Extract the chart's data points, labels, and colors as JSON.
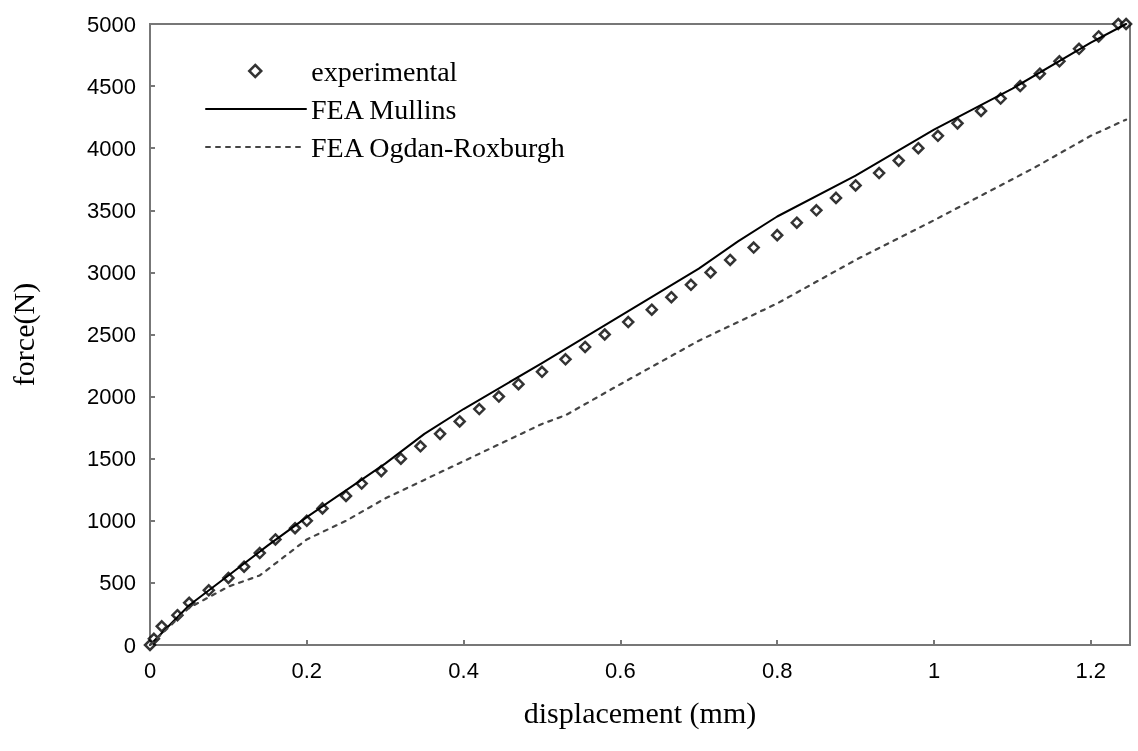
{
  "chart_data": {
    "type": "line",
    "xlabel": "displacement (mm)",
    "ylabel": "force(N)",
    "xlim": [
      0,
      1.25
    ],
    "xticks": [
      0,
      0.2,
      0.4,
      0.6,
      0.8,
      1,
      1.2
    ],
    "ylim": [
      0,
      5000
    ],
    "yticks": [
      0,
      500,
      1000,
      1500,
      2000,
      2500,
      3000,
      3500,
      4000,
      4500,
      5000
    ],
    "grid": false,
    "legend": "top left",
    "series": [
      {
        "name": "experimental",
        "type": "scatter",
        "marker": "diamond",
        "color": "#000000",
        "x": [
          0,
          0.005,
          0.015,
          0.035,
          0.05,
          0.075,
          0.1,
          0.12,
          0.14,
          0.16,
          0.185,
          0.2,
          0.22,
          0.25,
          0.27,
          0.295,
          0.32,
          0.345,
          0.37,
          0.395,
          0.42,
          0.445,
          0.47,
          0.5,
          0.53,
          0.555,
          0.58,
          0.61,
          0.64,
          0.665,
          0.69,
          0.715,
          0.74,
          0.77,
          0.8,
          0.825,
          0.85,
          0.875,
          0.9,
          0.93,
          0.955,
          0.98,
          1.005,
          1.03,
          1.06,
          1.085,
          1.11,
          1.135,
          1.16,
          1.185,
          1.21,
          1.235,
          1.245
        ],
        "values": [
          0,
          50,
          150,
          240,
          340,
          440,
          540,
          630,
          740,
          850,
          940,
          1000,
          1100,
          1200,
          1300,
          1400,
          1500,
          1600,
          1700,
          1800,
          1900,
          2000,
          2100,
          2200,
          2300,
          2400,
          2500,
          2600,
          2700,
          2800,
          2900,
          3000,
          3100,
          3200,
          3300,
          3400,
          3500,
          3600,
          3700,
          3800,
          3900,
          4000,
          4100,
          4200,
          4300,
          4400,
          4500,
          4600,
          4700,
          4800,
          4900,
          5000,
          5000
        ]
      },
      {
        "name": "FEA Mullins",
        "marker": "none",
        "line_style": "solid",
        "color": "#000000",
        "x": [
          0,
          0.05,
          0.1,
          0.15,
          0.2,
          0.3,
          0.35,
          0.4,
          0.5,
          0.6,
          0.7,
          0.75,
          0.8,
          0.9,
          1.0,
          1.1,
          1.2,
          1.245
        ],
        "values": [
          0,
          320,
          560,
          800,
          1030,
          1460,
          1700,
          1900,
          2270,
          2650,
          3030,
          3250,
          3450,
          3780,
          4150,
          4480,
          4850,
          5000
        ]
      },
      {
        "name": "FEA Ogdan-Roxburgh",
        "marker": "none",
        "line_style": "dashed",
        "color": "#444444",
        "x": [
          0,
          0.05,
          0.1,
          0.14,
          0.2,
          0.25,
          0.3,
          0.4,
          0.5,
          0.53,
          0.6,
          0.7,
          0.8,
          0.9,
          1.0,
          1.1,
          1.13,
          1.2,
          1.245
        ],
        "values": [
          0,
          300,
          470,
          560,
          850,
          1000,
          1180,
          1480,
          1780,
          1850,
          2100,
          2450,
          2750,
          3100,
          3420,
          3750,
          3850,
          4100,
          4230
        ]
      }
    ]
  }
}
